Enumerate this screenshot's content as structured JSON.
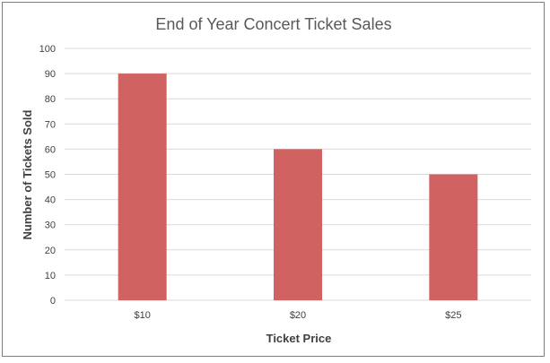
{
  "chart_data": {
    "type": "bar",
    "title": "End of Year Concert Ticket Sales",
    "xlabel": "Ticket Price",
    "ylabel": "Number of Tickets Sold",
    "categories": [
      "$10",
      "$20",
      "$25"
    ],
    "values": [
      90,
      60,
      50
    ],
    "ylim": [
      0,
      100
    ],
    "yticks": [
      "0",
      "10",
      "20",
      "30",
      "40",
      "50",
      "60",
      "70",
      "80",
      "90",
      "100"
    ],
    "grid": true,
    "legend": "none",
    "bar_color": "#d06262",
    "grid_color": "#d9d9d9"
  }
}
